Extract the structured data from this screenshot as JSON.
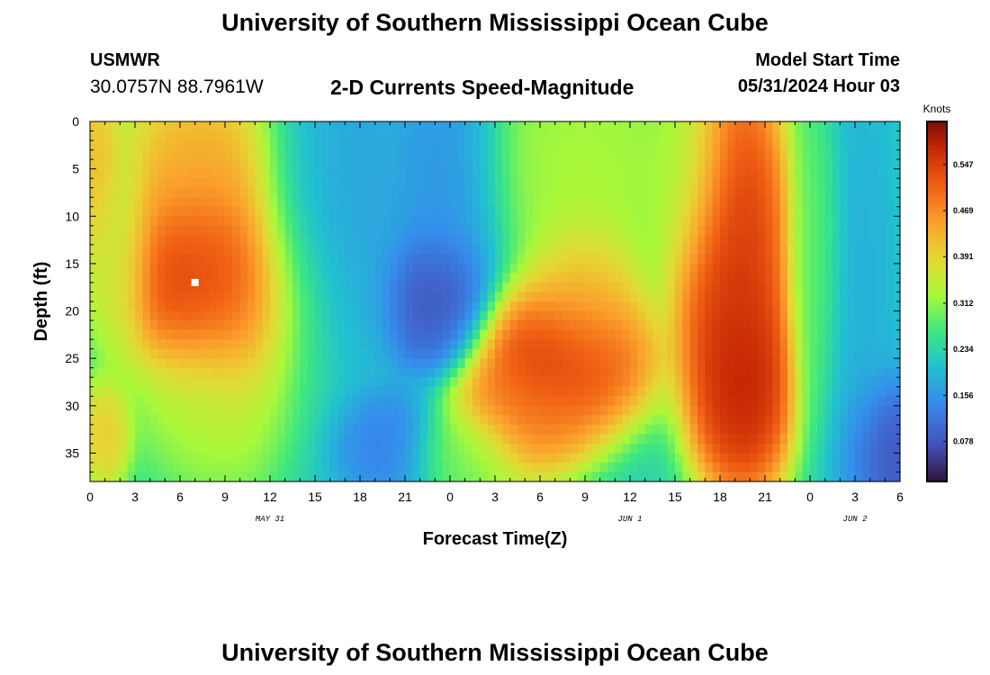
{
  "header": {
    "title": "University of Southern Mississippi Ocean Cube",
    "station": "USMWR",
    "coords": "30.0757N  88.7961W",
    "subtitle": "2-D Currents Speed-Magnitude",
    "start_label": "Model Start Time",
    "start_value": "05/31/2024 Hour 03"
  },
  "footer": {
    "title": "University of Southern Mississippi Ocean Cube"
  },
  "chart_data": {
    "type": "heatmap",
    "title": "2-D Currents Speed-Magnitude",
    "xlabel": "Forecast Time(Z)",
    "ylabel": "Depth (ft)",
    "x_ticks": [
      "0",
      "3",
      "6",
      "9",
      "12",
      "15",
      "18",
      "21",
      "0",
      "3",
      "6",
      "9",
      "12",
      "15",
      "18",
      "21",
      "0",
      "3",
      "6"
    ],
    "x_date_labels": [
      {
        "label": "MAY 31",
        "hour": 12
      },
      {
        "label": "JUN 1",
        "hour": 36
      },
      {
        "label": "JUN 2",
        "hour": 51
      }
    ],
    "xlim_hours": [
      0,
      54
    ],
    "y_ticks": [
      0,
      5,
      10,
      15,
      20,
      25,
      30,
      35
    ],
    "ylim": [
      0,
      38
    ],
    "y_inverted": true,
    "colorbar": {
      "label": "Knots",
      "range": [
        0.01,
        0.62
      ],
      "ticks": [
        "0.078",
        "0.156",
        "0.234",
        "0.312",
        "0.391",
        "0.469",
        "0.547"
      ],
      "tick_values": [
        0.078,
        0.156,
        0.234,
        0.312,
        0.391,
        0.469,
        0.547
      ]
    },
    "features": [
      {
        "hour": 0.5,
        "depth": 5,
        "speed": 0.44,
        "sx": 0.8,
        "sy": 5
      },
      {
        "hour": 1.0,
        "depth": 33,
        "speed": 0.42,
        "sx": 0.9,
        "sy": 3
      },
      {
        "hour": 2.0,
        "depth": 14,
        "speed": 0.33,
        "sx": 1.2,
        "sy": 6
      },
      {
        "hour": 7.0,
        "depth": 16,
        "speed": 0.6,
        "sx": 3.0,
        "sy": 5
      },
      {
        "hour": 7.5,
        "depth": 6,
        "speed": 0.46,
        "sx": 3.0,
        "sy": 6
      },
      {
        "hour": 10.0,
        "depth": 20,
        "speed": 0.5,
        "sx": 3.0,
        "sy": 6
      },
      {
        "hour": 9.0,
        "depth": 30,
        "speed": 0.34,
        "sx": 3.0,
        "sy": 5
      },
      {
        "hour": 14.5,
        "depth": 15,
        "speed": 0.2,
        "sx": 2.0,
        "sy": 12
      },
      {
        "hour": 17.0,
        "depth": 10,
        "speed": 0.16,
        "sx": 2.0,
        "sy": 10
      },
      {
        "hour": 19.5,
        "depth": 34,
        "speed": 0.12,
        "sx": 2.0,
        "sy": 3
      },
      {
        "hour": 23.0,
        "depth": 19,
        "speed": 0.06,
        "sx": 1.8,
        "sy": 4
      },
      {
        "hour": 24.0,
        "depth": 5,
        "speed": 0.14,
        "sx": 2.0,
        "sy": 7
      },
      {
        "hour": 25.0,
        "depth": 35,
        "speed": 0.3,
        "sx": 2.0,
        "sy": 2.5
      },
      {
        "hour": 31.5,
        "depth": 25,
        "speed": 0.6,
        "sx": 3.0,
        "sy": 4
      },
      {
        "hour": 29.0,
        "depth": 31,
        "speed": 0.5,
        "sx": 2.5,
        "sy": 3.5
      },
      {
        "hour": 33.0,
        "depth": 19,
        "speed": 0.44,
        "sx": 2.0,
        "sy": 5
      },
      {
        "hour": 33.0,
        "depth": 4,
        "speed": 0.34,
        "sx": 4.0,
        "sy": 6
      },
      {
        "hour": 42.5,
        "depth": 8,
        "speed": 0.58,
        "sx": 2.0,
        "sy": 8
      },
      {
        "hour": 43.5,
        "depth": 28,
        "speed": 0.62,
        "sx": 1.8,
        "sy": 6
      },
      {
        "hour": 43.0,
        "depth": 18,
        "speed": 0.58,
        "sx": 1.8,
        "sy": 8
      },
      {
        "hour": 40.0,
        "depth": 5,
        "speed": 0.3,
        "sx": 1.5,
        "sy": 6
      },
      {
        "hour": 48.5,
        "depth": 15,
        "speed": 0.3,
        "sx": 1.0,
        "sy": 10
      },
      {
        "hour": 51.0,
        "depth": 20,
        "speed": 0.18,
        "sx": 1.5,
        "sy": 15
      },
      {
        "hour": 53.0,
        "depth": 35,
        "speed": 0.05,
        "sx": 1.5,
        "sy": 4
      }
    ],
    "marker": {
      "hour": 7,
      "depth": 17,
      "color": "#ffffff"
    },
    "grid": false
  }
}
